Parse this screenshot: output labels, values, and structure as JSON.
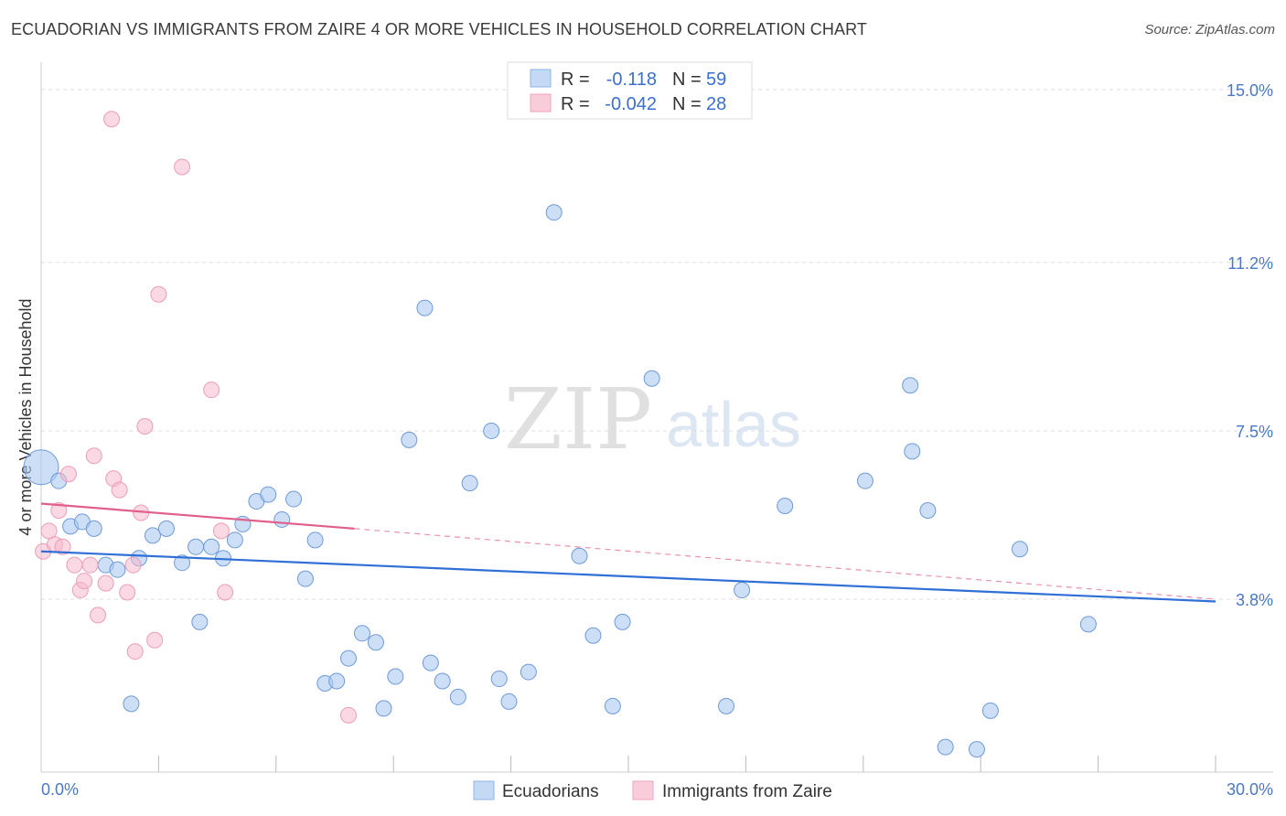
{
  "chart_data": {
    "type": "scatter",
    "title": "ECUADORIAN VS IMMIGRANTS FROM ZAIRE 4 OR MORE VEHICLES IN HOUSEHOLD CORRELATION CHART",
    "source": "Source: ZipAtlas.com",
    "ylabel": "4 or more Vehicles in Household",
    "xlabel": "",
    "xlim": [
      0,
      30
    ],
    "ylim": [
      0,
      15.4
    ],
    "y_ticks": [
      {
        "value": 15.0,
        "label": "15.0%"
      },
      {
        "value": 11.2,
        "label": "11.2%"
      },
      {
        "value": 7.5,
        "label": "7.5%"
      },
      {
        "value": 3.8,
        "label": "3.8%"
      }
    ],
    "x_tick_labels": [
      {
        "value": 0,
        "label": "0.0%"
      },
      {
        "value": 30,
        "label": "30.0%"
      }
    ],
    "watermark": {
      "zip": "ZIP",
      "atlas": "atlas"
    },
    "colors": {
      "ecuadorians": "#a8c8f0",
      "ecuadorians_line": "#2f6fd6",
      "zaire": "#f5b8cb",
      "zaire_line": "#e0608a",
      "tick": "#4a78c8"
    },
    "legend": {
      "rows": [
        {
          "r_label": "R =",
          "r_value": "-0.118",
          "n_label": "N =",
          "n_value": "59"
        },
        {
          "r_label": "R =",
          "r_value": "-0.042",
          "n_label": "N =",
          "n_value": "28"
        }
      ]
    },
    "series": [
      {
        "name": "Ecuadorians",
        "trend": {
          "x0": 0,
          "y0": 4.85,
          "x1": 30,
          "y1": 3.75
        },
        "points": [
          {
            "x": 0.0,
            "y": 6.7,
            "big": true
          },
          {
            "x": 0.45,
            "y": 6.4
          },
          {
            "x": 0.75,
            "y": 5.4
          },
          {
            "x": 1.05,
            "y": 5.5
          },
          {
            "x": 1.35,
            "y": 5.35
          },
          {
            "x": 1.65,
            "y": 4.55
          },
          {
            "x": 1.95,
            "y": 4.45
          },
          {
            "x": 2.3,
            "y": 1.5
          },
          {
            "x": 2.5,
            "y": 4.7
          },
          {
            "x": 2.85,
            "y": 5.2
          },
          {
            "x": 3.2,
            "y": 5.35
          },
          {
            "x": 3.6,
            "y": 4.6
          },
          {
            "x": 3.95,
            "y": 4.95
          },
          {
            "x": 4.05,
            "y": 3.3
          },
          {
            "x": 4.35,
            "y": 4.95
          },
          {
            "x": 4.65,
            "y": 4.7
          },
          {
            "x": 4.95,
            "y": 5.1
          },
          {
            "x": 5.15,
            "y": 5.45
          },
          {
            "x": 5.5,
            "y": 5.95
          },
          {
            "x": 5.8,
            "y": 6.1
          },
          {
            "x": 6.15,
            "y": 5.55
          },
          {
            "x": 6.45,
            "y": 6.0
          },
          {
            "x": 6.75,
            "y": 4.25
          },
          {
            "x": 7.0,
            "y": 5.1
          },
          {
            "x": 7.25,
            "y": 1.95
          },
          {
            "x": 7.55,
            "y": 2.0
          },
          {
            "x": 7.85,
            "y": 2.5
          },
          {
            "x": 8.2,
            "y": 3.05
          },
          {
            "x": 8.55,
            "y": 2.85
          },
          {
            "x": 8.75,
            "y": 1.4
          },
          {
            "x": 9.05,
            "y": 2.1
          },
          {
            "x": 9.4,
            "y": 7.3
          },
          {
            "x": 9.8,
            "y": 10.2
          },
          {
            "x": 9.95,
            "y": 2.4
          },
          {
            "x": 10.25,
            "y": 2.0
          },
          {
            "x": 10.65,
            "y": 1.65
          },
          {
            "x": 10.95,
            "y": 6.35
          },
          {
            "x": 11.5,
            "y": 7.5
          },
          {
            "x": 11.7,
            "y": 2.05
          },
          {
            "x": 11.95,
            "y": 1.55
          },
          {
            "x": 12.45,
            "y": 2.2
          },
          {
            "x": 13.1,
            "y": 12.3
          },
          {
            "x": 13.75,
            "y": 4.75
          },
          {
            "x": 14.1,
            "y": 3.0
          },
          {
            "x": 14.6,
            "y": 1.45
          },
          {
            "x": 14.85,
            "y": 3.3
          },
          {
            "x": 15.6,
            "y": 8.65
          },
          {
            "x": 17.5,
            "y": 1.45
          },
          {
            "x": 17.9,
            "y": 4.0
          },
          {
            "x": 19.0,
            "y": 5.85
          },
          {
            "x": 21.05,
            "y": 6.4
          },
          {
            "x": 22.2,
            "y": 8.5
          },
          {
            "x": 22.25,
            "y": 7.05
          },
          {
            "x": 22.65,
            "y": 5.75
          },
          {
            "x": 23.1,
            "y": 0.55
          },
          {
            "x": 23.9,
            "y": 0.5
          },
          {
            "x": 24.25,
            "y": 1.35
          },
          {
            "x": 25.0,
            "y": 4.9
          },
          {
            "x": 26.75,
            "y": 3.25
          }
        ]
      },
      {
        "name": "Immigrants from Zaire",
        "trend": {
          "x0": 0,
          "y0": 5.9,
          "x1": 8,
          "y1": 5.35
        },
        "trend_ext": {
          "x0": 8,
          "y0": 5.35,
          "x1": 30,
          "y1": 3.8
        },
        "points": [
          {
            "x": 0.05,
            "y": 4.85
          },
          {
            "x": 0.2,
            "y": 5.3
          },
          {
            "x": 0.35,
            "y": 5.0
          },
          {
            "x": 0.45,
            "y": 5.75
          },
          {
            "x": 0.55,
            "y": 4.95
          },
          {
            "x": 0.7,
            "y": 6.55
          },
          {
            "x": 0.85,
            "y": 4.55
          },
          {
            "x": 1.0,
            "y": 4.0
          },
          {
            "x": 1.1,
            "y": 4.2
          },
          {
            "x": 1.25,
            "y": 4.55
          },
          {
            "x": 1.35,
            "y": 6.95
          },
          {
            "x": 1.45,
            "y": 3.45
          },
          {
            "x": 1.65,
            "y": 4.15
          },
          {
            "x": 1.85,
            "y": 6.45
          },
          {
            "x": 2.0,
            "y": 6.2
          },
          {
            "x": 2.2,
            "y": 3.95
          },
          {
            "x": 2.35,
            "y": 4.55
          },
          {
            "x": 2.4,
            "y": 2.65
          },
          {
            "x": 2.55,
            "y": 5.7
          },
          {
            "x": 2.65,
            "y": 7.6
          },
          {
            "x": 2.9,
            "y": 2.9
          },
          {
            "x": 1.8,
            "y": 14.35
          },
          {
            "x": 3.6,
            "y": 13.3
          },
          {
            "x": 3.0,
            "y": 10.5
          },
          {
            "x": 4.35,
            "y": 8.4
          },
          {
            "x": 4.6,
            "y": 5.3
          },
          {
            "x": 4.7,
            "y": 3.95
          },
          {
            "x": 7.85,
            "y": 1.25
          }
        ]
      }
    ]
  },
  "bottom_legend": {
    "items": [
      {
        "label": "Ecuadorians"
      },
      {
        "label": "Immigrants from Zaire"
      }
    ]
  }
}
